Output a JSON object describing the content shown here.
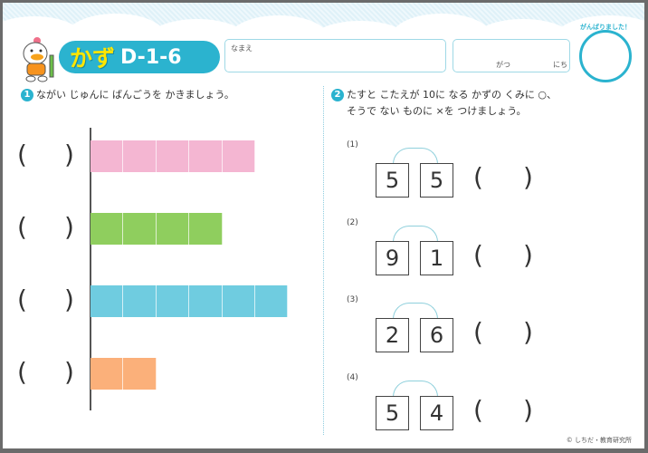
{
  "header": {
    "subject": "かず",
    "code": "D-1-6",
    "name_label": "なまえ",
    "month_label": "がつ",
    "day_label": "にち",
    "stamp_label": "がんばりました！"
  },
  "q1": {
    "number": "1",
    "text": "ながい じゅんに ばんごうを かきましょう。",
    "bars": [
      {
        "cells": 5,
        "color": "#f4b6d2"
      },
      {
        "cells": 4,
        "color": "#8fce5e"
      },
      {
        "cells": 6,
        "color": "#6fcce0"
      },
      {
        "cells": 2,
        "color": "#fbb07a"
      }
    ],
    "paren_open": "(",
    "paren_close": ")"
  },
  "q2": {
    "number": "2",
    "line1": "たすと こたえが 10に なる かずの くみに ○、",
    "line2": "そうで ない ものに ×を つけましょう。",
    "items": [
      {
        "label": "(1)",
        "a": "5",
        "b": "5"
      },
      {
        "label": "(2)",
        "a": "9",
        "b": "1"
      },
      {
        "label": "(3)",
        "a": "2",
        "b": "6"
      },
      {
        "label": "(4)",
        "a": "5",
        "b": "4"
      }
    ]
  },
  "footer": {
    "copyright": "© しちだ・教育研究所"
  }
}
